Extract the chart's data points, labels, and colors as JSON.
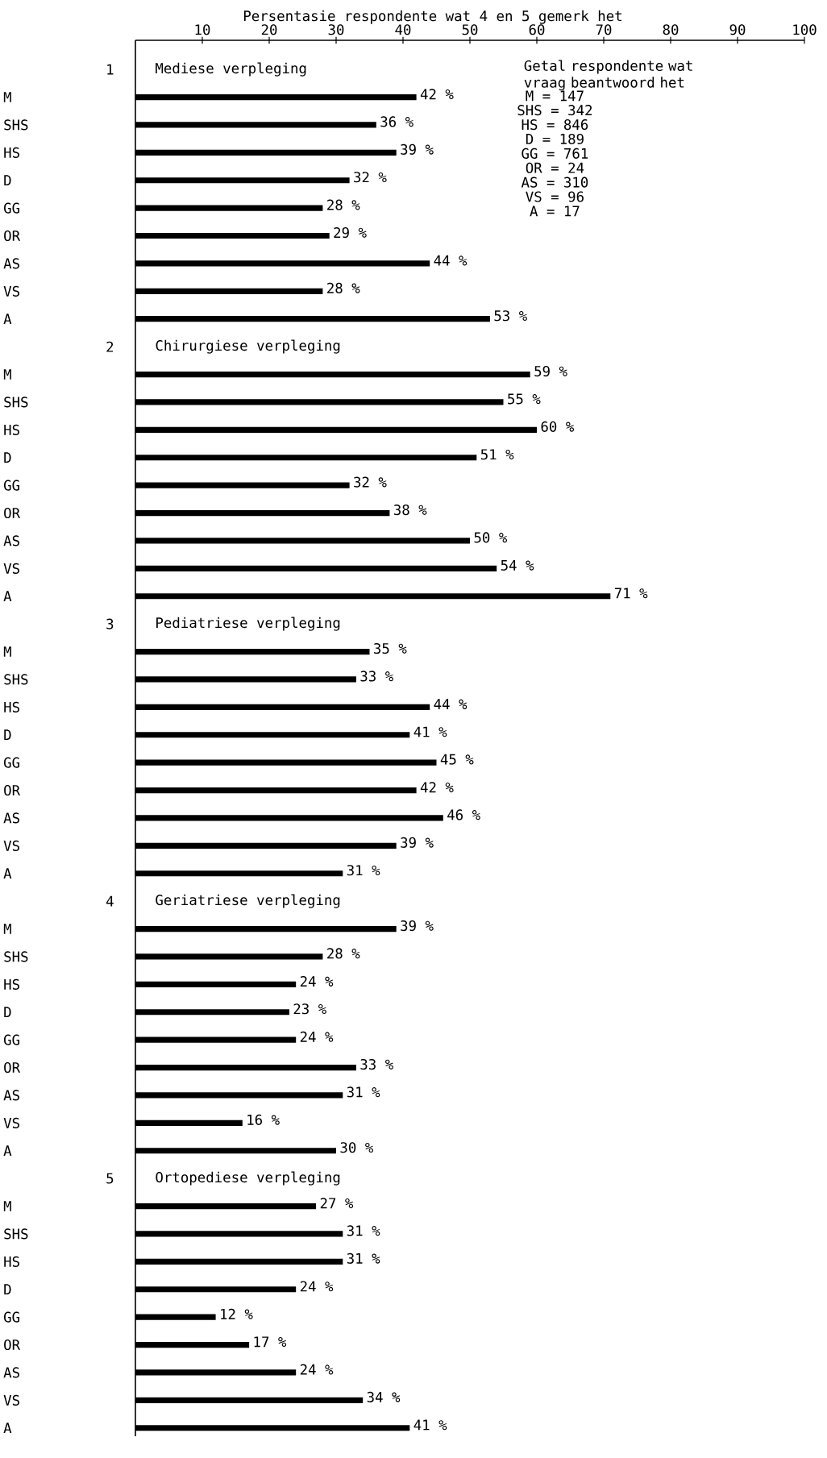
{
  "chart_data": [
    {
      "type": "bar",
      "orientation": "horizontal",
      "title": "Mediese verpleging",
      "xlabel": "Persentasie respondente wat 4 en 5 gemerk het",
      "color": "#000000",
      "xlim": [
        0,
        100
      ],
      "xticks": [
        10,
        20,
        30,
        40,
        50,
        60,
        70,
        80,
        90,
        100
      ],
      "annotations": [
        "1",
        "Getal respondente wat vraag beantwoord het",
        "M = 147",
        "SHS = 342",
        "HS = 846",
        "D = 189",
        "GG = 761",
        "OR = 24",
        "AS = 310",
        "VS = 96",
        "A = 17"
      ],
      "categories": [
        "M",
        "SHS",
        "HS",
        "D",
        "GG",
        "OR",
        "AS",
        "VS",
        "A"
      ],
      "values": [
        42,
        36,
        39,
        32,
        28,
        29,
        44,
        28,
        53
      ],
      "value_labels": [
        "42 %",
        "36 %",
        "39 %",
        "32 %",
        "28 %",
        "29 %",
        "44 %",
        "28 %",
        "53 %"
      ]
    },
    {
      "type": "bar",
      "orientation": "horizontal",
      "title": "Chirurgiese verpleging",
      "color": "#000000",
      "xlim": [
        0,
        100
      ],
      "tick_labels": "y",
      "annotations": [
        "2"
      ],
      "categories": [
        "M",
        "SHS",
        "HS",
        "D",
        "GG",
        "OR",
        "AS",
        "VS",
        "A"
      ],
      "values": [
        59,
        55,
        60,
        51,
        32,
        38,
        50,
        54,
        71
      ],
      "value_labels": [
        "59 %",
        "55 %",
        "60 %",
        "51 %",
        "32 %",
        "38 %",
        "50 %",
        "54 %",
        "71 %"
      ]
    },
    {
      "type": "bar",
      "orientation": "horizontal",
      "title": "Pediatriese verpleging",
      "color": "#000000",
      "xlim": [
        0,
        100
      ],
      "tick_labels": "y",
      "annotations": [
        "3"
      ],
      "categories": [
        "M",
        "SHS",
        "HS",
        "D",
        "GG",
        "OR",
        "AS",
        "VS",
        "A"
      ],
      "values": [
        35,
        33,
        44,
        41,
        45,
        42,
        46,
        39,
        31
      ],
      "value_labels": [
        "35 %",
        "33 %",
        "44 %",
        "41 %",
        "45 %",
        "42 %",
        "46 %",
        "39 %",
        "31 %"
      ]
    },
    {
      "type": "bar",
      "orientation": "horizontal",
      "title": "Geriatriese verpleging",
      "color": "#000000",
      "xlim": [
        0,
        100
      ],
      "tick_labels": "y",
      "annotations": [
        "4"
      ],
      "categories": [
        "M",
        "SHS",
        "HS",
        "D",
        "GG",
        "OR",
        "AS",
        "VS",
        "A"
      ],
      "values": [
        39,
        28,
        24,
        23,
        24,
        33,
        31,
        16,
        30
      ],
      "value_labels": [
        "39 %",
        "28 %",
        "24 %",
        "23 %",
        "24 %",
        "33 %",
        "31 %",
        "16 %",
        "30 %"
      ]
    },
    {
      "type": "bar",
      "orientation": "horizontal",
      "title": "Ortopediese verpleging",
      "color": "#000000",
      "xlim": [
        0,
        100
      ],
      "tick_labels": "y",
      "annotations": [
        "5"
      ],
      "categories": [
        "M",
        "SHS",
        "HS",
        "D",
        "GG",
        "OR",
        "AS",
        "VS",
        "A"
      ],
      "values": [
        27,
        31,
        31,
        24,
        12,
        17,
        24,
        34,
        41
      ],
      "value_labels": [
        "27 %",
        "31 %",
        "31 %",
        "24 %",
        "12 %",
        "17 %",
        "24 %",
        "34 %",
        "41 %"
      ]
    }
  ]
}
